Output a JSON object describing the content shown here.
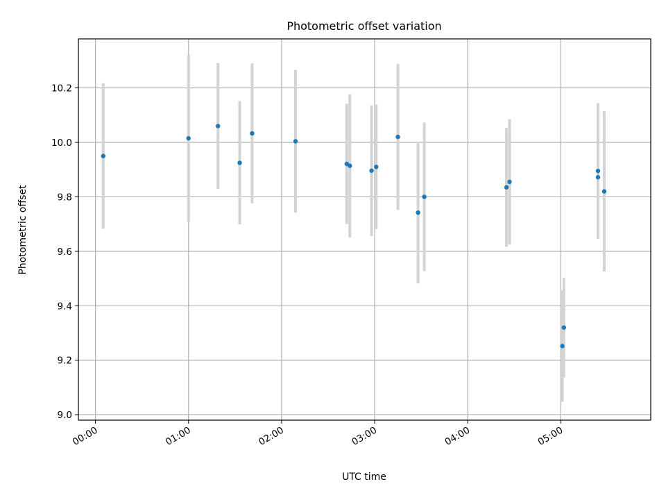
{
  "chart_data": {
    "type": "scatter",
    "title": "Photometric offset variation",
    "xlabel": "UTC time",
    "ylabel": "Photometric offset",
    "x_ticks": [
      "00:00",
      "01:00",
      "02:00",
      "03:00",
      "04:00",
      "05:00"
    ],
    "y_ticks": [
      "9.0",
      "9.2",
      "9.4",
      "9.6",
      "9.8",
      "10.0",
      "10.2"
    ],
    "xlim": [
      "-00:11",
      "05:58"
    ],
    "ylim": [
      8.98,
      10.38
    ],
    "grid": true,
    "x_format": "HH:MM",
    "colors": {
      "points": "#1f77b4",
      "errorbars": "#d3d3d3",
      "grid": "#b0b0b0"
    },
    "points": [
      {
        "time": "00:05",
        "y": 9.95,
        "err": 0.267
      },
      {
        "time": "01:00",
        "y": 10.015,
        "err": 0.307
      },
      {
        "time": "01:19",
        "y": 10.06,
        "err": 0.231
      },
      {
        "time": "01:33",
        "y": 9.925,
        "err": 0.226
      },
      {
        "time": "01:41",
        "y": 10.033,
        "err": 0.257
      },
      {
        "time": "02:09",
        "y": 10.004,
        "err": 0.262
      },
      {
        "time": "02:42",
        "y": 9.921,
        "err": 0.221
      },
      {
        "time": "02:44",
        "y": 9.914,
        "err": 0.263
      },
      {
        "time": "02:58",
        "y": 9.896,
        "err": 0.24
      },
      {
        "time": "03:01",
        "y": 9.91,
        "err": 0.229
      },
      {
        "time": "03:15",
        "y": 10.02,
        "err": 0.268
      },
      {
        "time": "03:28",
        "y": 9.742,
        "err": 0.26
      },
      {
        "time": "03:32",
        "y": 9.8,
        "err": 0.273
      },
      {
        "time": "04:25",
        "y": 9.835,
        "err": 0.218
      },
      {
        "time": "04:27",
        "y": 9.855,
        "err": 0.23
      },
      {
        "time": "05:01",
        "y": 9.252,
        "err": 0.205
      },
      {
        "time": "05:02",
        "y": 9.32,
        "err": 0.183
      },
      {
        "time": "05:24",
        "y": 9.872,
        "err": 0.204
      },
      {
        "time": "05:24",
        "y": 9.895,
        "err": 0.249
      },
      {
        "time": "05:28",
        "y": 9.82,
        "err": 0.294
      }
    ]
  }
}
